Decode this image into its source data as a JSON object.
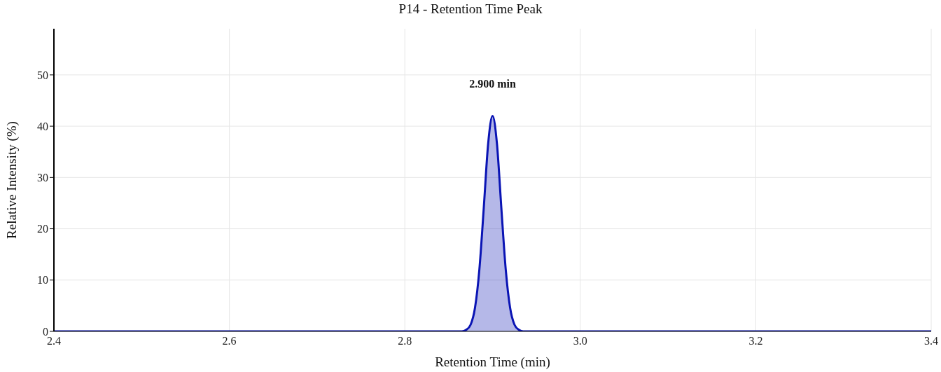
{
  "chart_data": {
    "type": "area",
    "title": "P14 - Retention Time Peak",
    "xlabel": "Retention Time (min)",
    "ylabel": "Relative Intensity (%)",
    "x": [
      2.4,
      2.86,
      2.865,
      2.87,
      2.875,
      2.88,
      2.885,
      2.89,
      2.895,
      2.9,
      2.905,
      2.91,
      2.915,
      2.92,
      2.925,
      2.93,
      2.935,
      2.94,
      3.4
    ],
    "series": [
      {
        "color": "#0a14b4",
        "values": [
          0,
          0,
          0,
          0.3,
          1.3,
          4.6,
          12.1,
          24.1,
          36.6,
          42,
          36.6,
          24.1,
          12.1,
          4.6,
          1.3,
          0.3,
          0,
          0,
          0
        ]
      }
    ],
    "annotations": [
      "2.900 min"
    ],
    "xlim": [
      2.4,
      3.4
    ],
    "xticks": [
      {
        "value": 2.4,
        "label": "2.4"
      },
      {
        "value": 2.6,
        "label": "2.6"
      },
      {
        "value": 2.8,
        "label": "2.8"
      },
      {
        "value": 3.0,
        "label": "3.0"
      },
      {
        "value": 3.2,
        "label": "3.2"
      },
      {
        "value": 3.4,
        "label": "3.4"
      }
    ],
    "ylim": [
      0,
      59
    ],
    "yticks": [
      0,
      10,
      20,
      30,
      40,
      50
    ],
    "grid": true,
    "line_style": "solid"
  }
}
